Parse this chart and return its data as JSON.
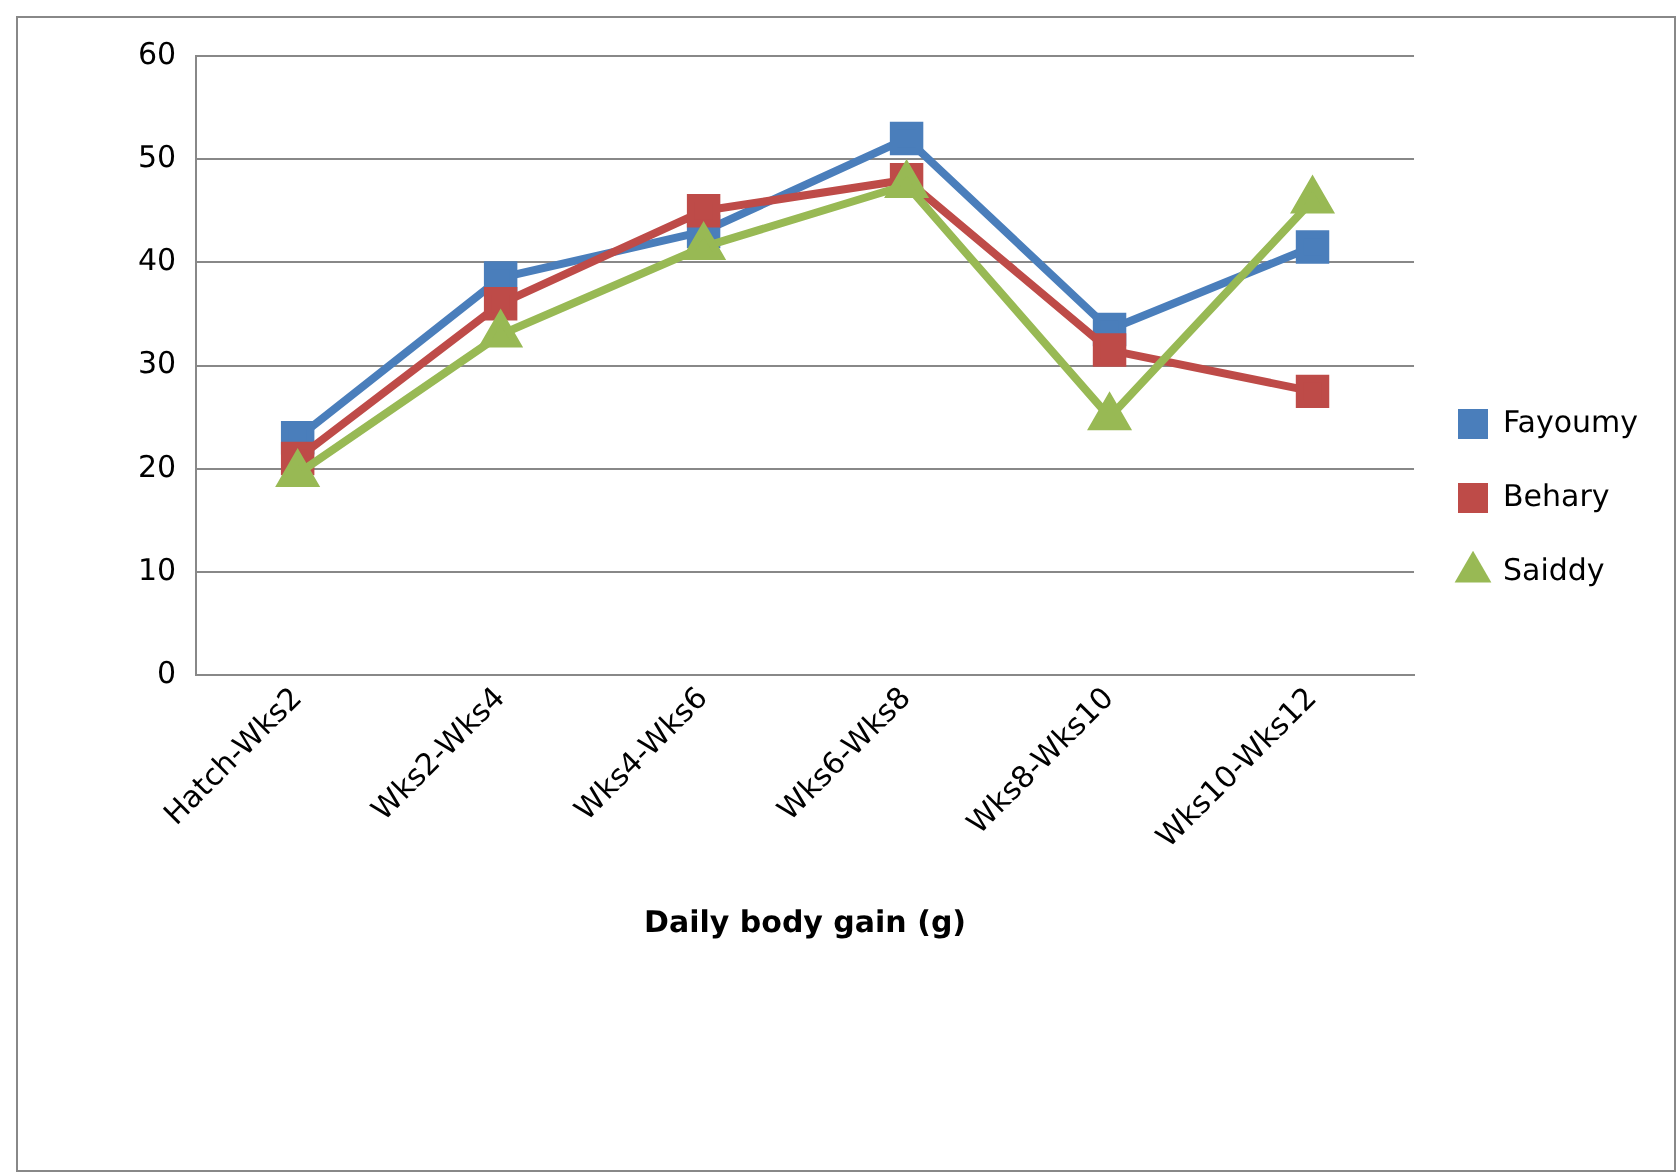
{
  "chart_data": {
    "type": "line",
    "xlabel": "Daily body gain (g)",
    "categories": [
      "Hatch-Wks2",
      "Wks2-Wks4",
      "Wks4-Wks6",
      "Wks6-Wks8",
      "Wks8-Wks10",
      "Wks10-Wks12"
    ],
    "series": [
      {
        "name": "Fayoumy",
        "color": "#4a7ebb",
        "marker": "square",
        "values": [
          23,
          38.5,
          43,
          52,
          33.5,
          41.5
        ]
      },
      {
        "name": "Behary",
        "color": "#be4b48",
        "marker": "square",
        "values": [
          21,
          36,
          45,
          48,
          31.5,
          27.5
        ]
      },
      {
        "name": "Saiddy",
        "color": "#98b954",
        "marker": "triangle",
        "values": [
          19.5,
          33,
          41.5,
          47.5,
          25,
          46
        ]
      }
    ],
    "ylim": [
      0,
      60
    ],
    "yticks": [
      0,
      10,
      20,
      30,
      40,
      50,
      60
    ],
    "grid": "y",
    "legend": "right",
    "line_style": "solid"
  }
}
